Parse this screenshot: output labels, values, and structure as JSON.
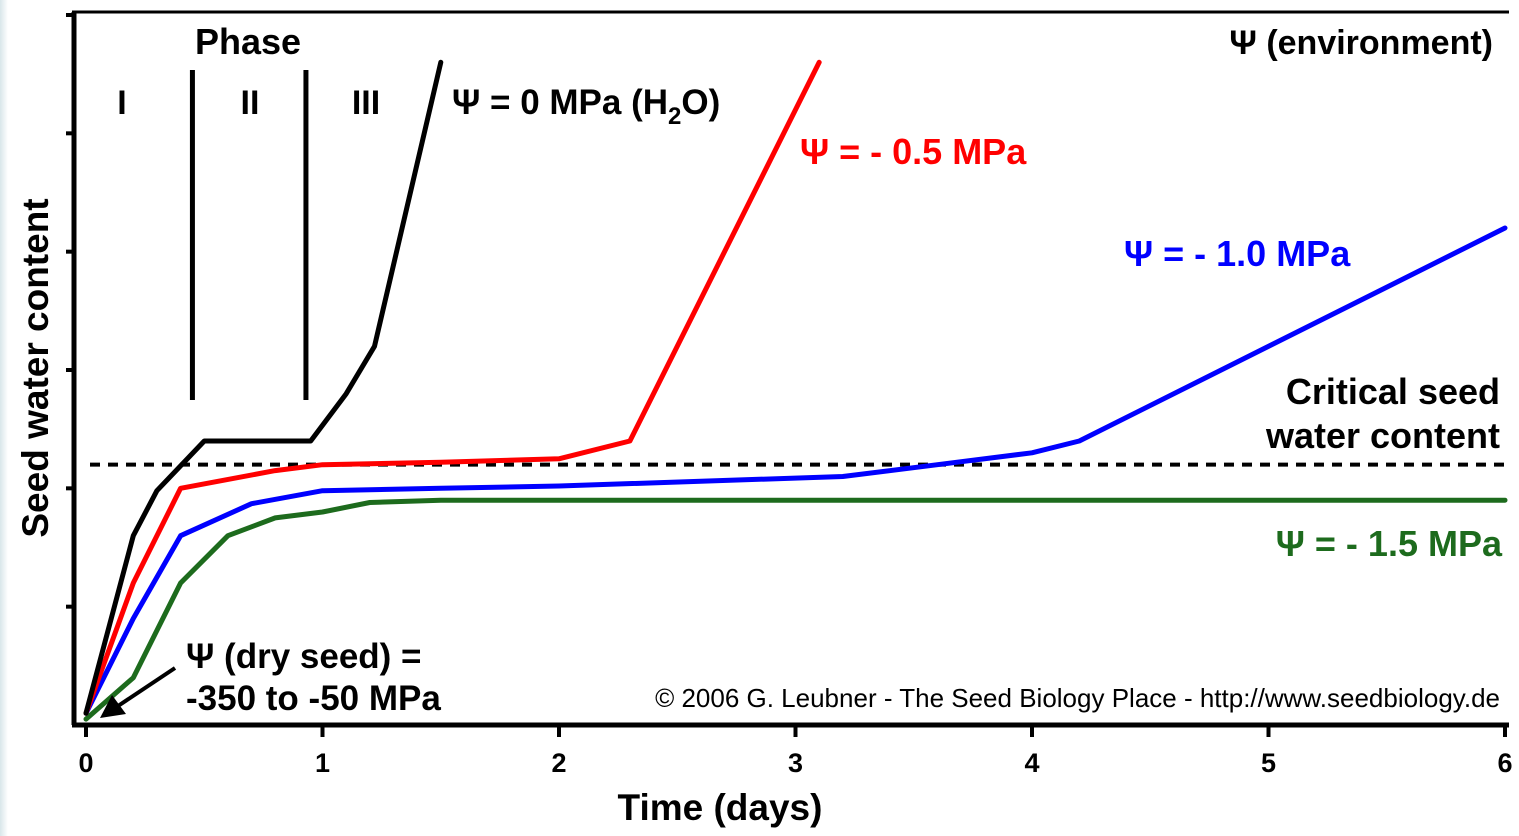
{
  "chart_data": {
    "type": "line",
    "title": "",
    "xlabel": "Time (days)",
    "ylabel": "Seed water content",
    "xlim": [
      0,
      6
    ],
    "ylim": [
      0,
      6
    ],
    "x_ticks": [
      "0",
      "1",
      "2",
      "3",
      "4",
      "5",
      "6"
    ],
    "grid": false,
    "series": [
      {
        "name": "Ψ = 0 MPa (H2O)",
        "color": "#000000",
        "points": [
          [
            0,
            0.1
          ],
          [
            0.2,
            1.6
          ],
          [
            0.3,
            1.98
          ],
          [
            0.5,
            2.4
          ],
          [
            0.95,
            2.4
          ],
          [
            1.1,
            2.8
          ],
          [
            1.22,
            3.2
          ],
          [
            1.5,
            5.6
          ]
        ]
      },
      {
        "name": "Ψ = - 0.5 MPa",
        "color": "#ff0000",
        "points": [
          [
            0,
            0.1
          ],
          [
            0.2,
            1.2
          ],
          [
            0.4,
            2.0
          ],
          [
            0.8,
            2.15
          ],
          [
            1.0,
            2.2
          ],
          [
            1.5,
            2.22
          ],
          [
            2.0,
            2.25
          ],
          [
            2.3,
            2.4
          ],
          [
            3.1,
            5.6
          ]
        ]
      },
      {
        "name": "Ψ = - 1.0 MPa",
        "color": "#0000ff",
        "points": [
          [
            0,
            0.1
          ],
          [
            0.2,
            0.9
          ],
          [
            0.4,
            1.6
          ],
          [
            0.7,
            1.87
          ],
          [
            1.0,
            1.98
          ],
          [
            1.5,
            2.0
          ],
          [
            2.0,
            2.02
          ],
          [
            3.2,
            2.1
          ],
          [
            3.6,
            2.2
          ],
          [
            4.0,
            2.3
          ],
          [
            4.2,
            2.4
          ],
          [
            6.0,
            4.2
          ]
        ]
      },
      {
        "name": "Ψ = - 1.5 MPa",
        "color": "#1d6b1d",
        "points": [
          [
            0,
            0.05
          ],
          [
            0.2,
            0.4
          ],
          [
            0.4,
            1.2
          ],
          [
            0.6,
            1.6
          ],
          [
            0.8,
            1.75
          ],
          [
            1.0,
            1.8
          ],
          [
            1.2,
            1.88
          ],
          [
            1.5,
            1.9
          ],
          [
            6.0,
            1.9
          ]
        ]
      }
    ],
    "reference_lines": [
      {
        "label_line1": "Critical seed",
        "label_line2": "water content",
        "y": 2.2,
        "style": "dashed"
      }
    ],
    "phase_dividers_x": [
      0.45,
      0.93
    ],
    "annotations": {
      "phase_title": "Phase",
      "phase_labels": [
        "I",
        "II",
        "III"
      ],
      "environment": "Ψ (environment)",
      "dry_seed_line1": "Ψ (dry seed) =",
      "dry_seed_line2": "-350 to -50 MPa",
      "copyright": "© 2006 G. Leubner - The Seed Biology Place - http://www.seedbiology.de",
      "label_black_prefix": "Ψ = 0 MPa (H",
      "label_black_sub": "2",
      "label_black_suffix": "O)",
      "label_red": "Ψ = - 0.5 MPa",
      "label_blue": "Ψ = - 1.0 MPa",
      "label_green": "Ψ = - 1.5 MPa"
    }
  }
}
